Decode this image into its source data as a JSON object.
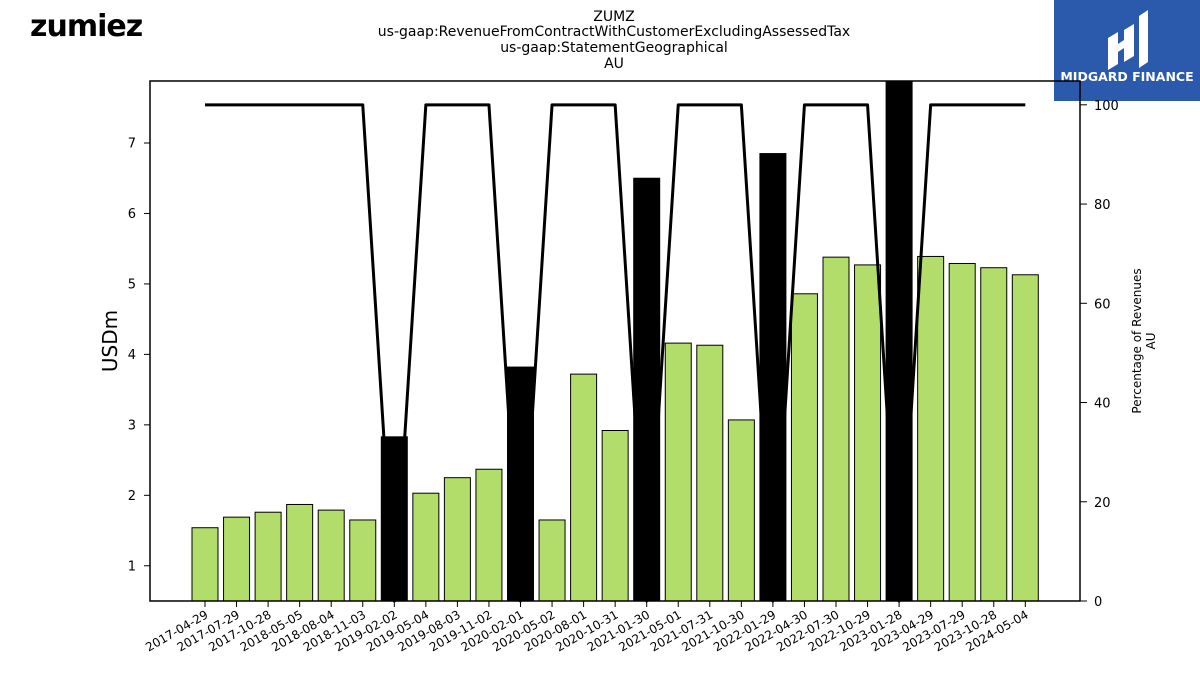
{
  "header": {
    "company_logo_text": "zumiez",
    "brand_logo_text": "MIDGARD FINANCE"
  },
  "colors": {
    "bar_normal": "#b3dd6a",
    "bar_highlight": "#000000",
    "line": "#000000",
    "brand_bg": "#2b5aad"
  },
  "chart_data": {
    "type": "bar",
    "title_lines": [
      "ZUMZ",
      "us-gaap:RevenueFromContractWithCustomerExcludingAssessedTax",
      "us-gaap:StatementGeographical",
      "AU"
    ],
    "ylabel": "USDm",
    "y2label_lines": [
      "Percentage of Revenues",
      "AU"
    ],
    "ylim": [
      0.5,
      7.88
    ],
    "y_ticks": [
      1,
      2,
      3,
      4,
      5,
      6,
      7
    ],
    "y2lim": [
      0,
      104.8
    ],
    "y2_ticks": [
      0,
      20,
      40,
      60,
      80,
      100
    ],
    "categories": [
      "2017-04-29",
      "2017-07-29",
      "2017-10-28",
      "2018-05-05",
      "2018-08-04",
      "2018-11-03",
      "2019-02-02",
      "2019-05-04",
      "2019-08-03",
      "2019-11-02",
      "2020-02-01",
      "2020-05-02",
      "2020-08-01",
      "2020-10-31",
      "2021-01-30",
      "2021-05-01",
      "2021-07-31",
      "2021-10-30",
      "2022-01-29",
      "2022-04-30",
      "2022-07-30",
      "2022-10-29",
      "2023-01-28",
      "2023-04-29",
      "2023-07-29",
      "2023-10-28",
      "2024-05-04"
    ],
    "values": [
      1.54,
      1.69,
      1.76,
      1.87,
      1.79,
      1.65,
      2.83,
      2.03,
      2.25,
      2.37,
      3.82,
      1.65,
      3.72,
      2.92,
      6.5,
      4.16,
      4.13,
      3.07,
      6.85,
      4.86,
      5.38,
      5.27,
      7.88,
      5.39,
      5.29,
      5.23,
      5.13
    ],
    "highlight": [
      false,
      false,
      false,
      false,
      false,
      false,
      true,
      false,
      false,
      false,
      true,
      false,
      false,
      false,
      true,
      false,
      false,
      false,
      true,
      false,
      false,
      false,
      true,
      false,
      false,
      false,
      false
    ],
    "percentage_line": [
      100,
      100,
      100,
      100,
      100,
      100,
      0,
      100,
      100,
      100,
      0,
      100,
      100,
      100,
      0,
      100,
      100,
      100,
      0,
      100,
      100,
      100,
      0,
      100,
      100,
      100,
      100
    ]
  }
}
